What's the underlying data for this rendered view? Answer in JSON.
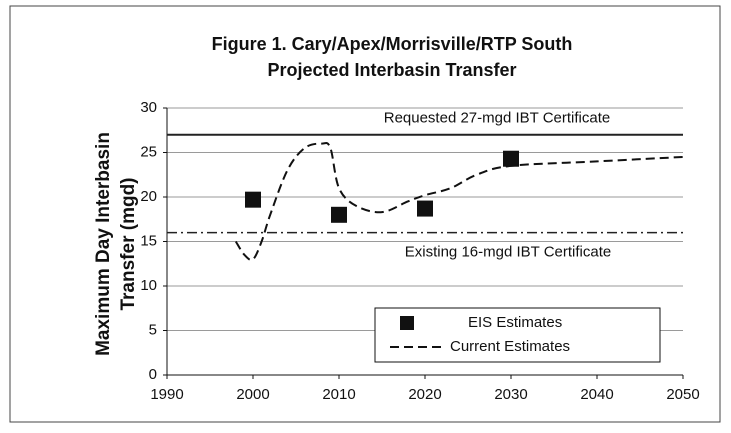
{
  "chart_data": {
    "type": "line",
    "title": [
      "Figure 1. Cary/Apex/Morrisville/RTP South",
      "Projected Interbasin Transfer"
    ],
    "y_label": [
      "Maximum Day Interbasin",
      "Transfer (mgd)"
    ],
    "xlim": [
      1990,
      2050
    ],
    "xticks": [
      1990,
      2000,
      2010,
      2020,
      2030,
      2040,
      2050
    ],
    "ylim": [
      0,
      30
    ],
    "yticks": [
      0,
      5,
      10,
      15,
      20,
      25,
      30
    ],
    "grid": true,
    "legend": "lower right",
    "reference_lines": [
      {
        "value": 27,
        "label": "Requested 27-mgd IBT Certificate",
        "style": "solid",
        "color": "#222222"
      },
      {
        "value": 16,
        "label": "Existing 16-mgd IBT Certificate",
        "style": "dashdot",
        "color": "#222222"
      }
    ],
    "series": [
      {
        "name": "EIS Estimates",
        "style": "markers",
        "color": "#111111",
        "x": [
          2000,
          2010,
          2020,
          2030
        ],
        "values": [
          19.7,
          18,
          18.7,
          24.3
        ]
      },
      {
        "name": "Current Estimates",
        "style": "dashed",
        "color": "#111111",
        "x": [
          1998,
          1999,
          2000,
          2001,
          2002,
          2004,
          2006,
          2008,
          2009,
          2010,
          2012,
          2015,
          2018,
          2020,
          2023,
          2026,
          2030,
          2040,
          2050
        ],
        "values": [
          15,
          13.5,
          13,
          15,
          18,
          23,
          25.5,
          26,
          25.5,
          21,
          19,
          18.3,
          19.5,
          20.2,
          21,
          22.5,
          23.5,
          24,
          24.5
        ]
      }
    ]
  }
}
